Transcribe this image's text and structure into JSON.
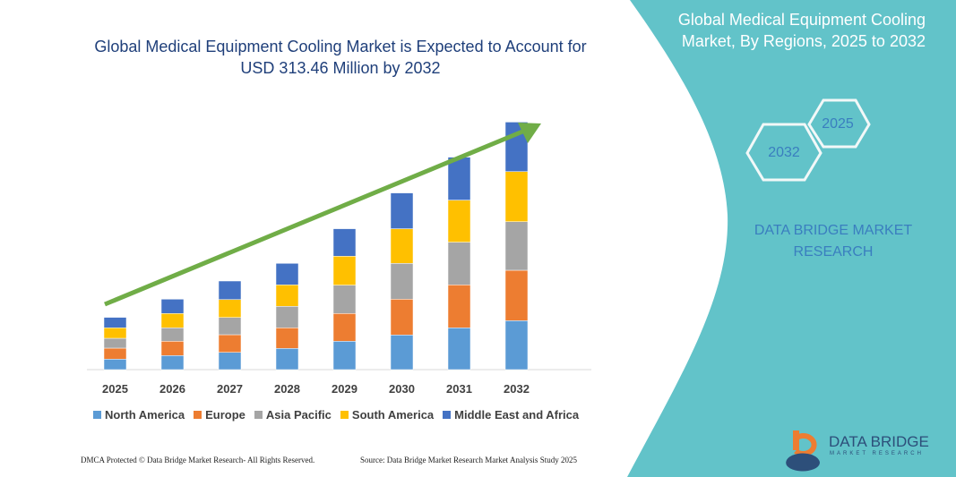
{
  "chart_data": {
    "type": "bar",
    "stacked": true,
    "title": "Global Medical Equipment Cooling Market is Expected to Account for USD 313.46 Million by 2032",
    "categories": [
      "2025",
      "2026",
      "2027",
      "2028",
      "2029",
      "2030",
      "2031",
      "2032"
    ],
    "series": [
      {
        "name": "North America",
        "color": "#5B9BD5",
        "values": [
          11.7,
          15.7,
          19.3,
          23.7,
          31.7,
          38.7,
          46.7,
          54.7
        ]
      },
      {
        "name": "Europe",
        "color": "#ED7D31",
        "values": [
          12.3,
          16,
          19.7,
          23,
          31,
          40,
          48,
          56.3
        ]
      },
      {
        "name": "Asia Pacific",
        "color": "#A5A5A5",
        "values": [
          11,
          15,
          19.3,
          24,
          31.7,
          40,
          47.7,
          54.3
        ]
      },
      {
        "name": "South America",
        "color": "#FFC000",
        "values": [
          11.7,
          16,
          20,
          24,
          32.3,
          38.7,
          47,
          56
        ]
      },
      {
        "name": "Middle East and Africa",
        "color": "#4472C4",
        "values": [
          11.7,
          16,
          20.7,
          24,
          30.7,
          40,
          48,
          55.3
        ]
      }
    ],
    "legend": "bottom",
    "grid": false,
    "trend_arrow_color": "#70AD47"
  },
  "side": {
    "title_line1": "Global Medical Equipment Cooling",
    "title_line2": "Market, By Regions, 2025 to 2032",
    "hex1": "2025",
    "hex2": "2032",
    "brand_line1": "DATA BRIDGE MARKET",
    "brand_line2": "RESEARCH",
    "panel_color": "#62C3C9"
  },
  "logo": {
    "name": "DATA BRIDGE",
    "sub": "MARKET RESEARCH"
  },
  "footer": {
    "left": "DMCA Protected © Data Bridge Market Research- All Rights Reserved.",
    "right": "Source: Data Bridge Market Research Market Analysis Study 2025"
  }
}
